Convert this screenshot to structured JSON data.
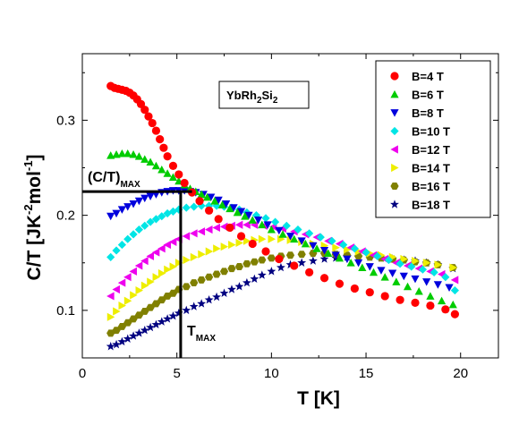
{
  "chart_data": {
    "type": "scatter",
    "xlabel": "T [K]",
    "ylabel_main": "C/T [JK",
    "ylabel_sup1": "-2",
    "ylabel_mid": "mol",
    "ylabel_sup2": "-1",
    "ylabel_end": "]",
    "xlim": [
      0,
      22
    ],
    "ylim": [
      0.05,
      0.37
    ],
    "xticks": [
      0,
      5,
      10,
      15,
      20
    ],
    "yticks": [
      0.1,
      0.2,
      0.3
    ],
    "xtick_labels": [
      "0",
      "5",
      "10",
      "15",
      "20"
    ],
    "ytick_labels": [
      "0.1",
      "0.2",
      "0.3"
    ],
    "legend_position": "top-right",
    "label_box": {
      "main": "YbRh",
      "sub1": "2",
      "mid": "Si",
      "sub2": "2"
    },
    "annotations": {
      "ct_max_main": "(C/T)",
      "ct_max_sub": "MAX",
      "t_max_main": "T",
      "t_max_sub": "MAX",
      "t_max_value": 5.2,
      "ct_max_value": 0.225
    },
    "series": [
      {
        "name": "B=4 T",
        "marker": "circle",
        "color": "#ff0000",
        "x": [
          1.5,
          1.7,
          1.9,
          2.1,
          2.3,
          2.5,
          2.7,
          2.9,
          3.1,
          3.3,
          3.5,
          3.7,
          3.9,
          4.1,
          4.3,
          4.5,
          4.8,
          5.1,
          5.4,
          5.8,
          6.2,
          6.7,
          7.2,
          7.8,
          8.4,
          9.0,
          9.7,
          10.4,
          11.2,
          12.0,
          12.8,
          13.6,
          14.4,
          15.2,
          16.0,
          16.8,
          17.6,
          18.4,
          19.2,
          19.7
        ],
        "y": [
          0.336,
          0.334,
          0.333,
          0.332,
          0.331,
          0.329,
          0.326,
          0.322,
          0.317,
          0.311,
          0.304,
          0.297,
          0.289,
          0.28,
          0.271,
          0.262,
          0.252,
          0.243,
          0.234,
          0.224,
          0.215,
          0.205,
          0.196,
          0.187,
          0.178,
          0.17,
          0.162,
          0.154,
          0.147,
          0.14,
          0.134,
          0.128,
          0.123,
          0.119,
          0.115,
          0.111,
          0.108,
          0.105,
          0.101,
          0.096
        ]
      },
      {
        "name": "B=6 T",
        "marker": "triangle-up",
        "color": "#00cc00",
        "x": [
          1.5,
          1.8,
          2.1,
          2.4,
          2.7,
          3.0,
          3.3,
          3.6,
          3.9,
          4.2,
          4.5,
          4.8,
          5.1,
          5.4,
          5.7,
          6.0,
          6.3,
          6.6,
          7.0,
          7.4,
          7.8,
          8.2,
          8.6,
          9.0,
          9.5,
          10.0,
          10.6,
          11.2,
          11.8,
          12.4,
          13.0,
          13.6,
          14.2,
          14.8,
          15.4,
          16.0,
          16.6,
          17.2,
          17.8,
          18.4,
          19.0,
          19.6
        ],
        "y": [
          0.263,
          0.264,
          0.265,
          0.265,
          0.264,
          0.262,
          0.259,
          0.256,
          0.252,
          0.248,
          0.244,
          0.24,
          0.236,
          0.232,
          0.228,
          0.225,
          0.222,
          0.219,
          0.215,
          0.211,
          0.207,
          0.203,
          0.199,
          0.195,
          0.19,
          0.185,
          0.18,
          0.175,
          0.17,
          0.165,
          0.16,
          0.155,
          0.15,
          0.145,
          0.14,
          0.135,
          0.13,
          0.125,
          0.12,
          0.115,
          0.11,
          0.106
        ]
      },
      {
        "name": "B=8 T",
        "marker": "triangle-down",
        "color": "#0000dd",
        "x": [
          1.5,
          1.8,
          2.1,
          2.4,
          2.7,
          3.0,
          3.3,
          3.6,
          3.9,
          4.2,
          4.5,
          4.8,
          5.1,
          5.4,
          5.7,
          6.0,
          6.4,
          6.8,
          7.2,
          7.6,
          8.0,
          8.4,
          8.8,
          9.3,
          9.8,
          10.4,
          11.0,
          11.6,
          12.2,
          12.8,
          13.4,
          14.0,
          14.6,
          15.2,
          15.8,
          16.4,
          17.0,
          17.6,
          18.2,
          18.8,
          19.4
        ],
        "y": [
          0.199,
          0.202,
          0.206,
          0.209,
          0.212,
          0.215,
          0.218,
          0.22,
          0.222,
          0.224,
          0.225,
          0.226,
          0.226,
          0.226,
          0.225,
          0.224,
          0.222,
          0.219,
          0.216,
          0.212,
          0.208,
          0.204,
          0.2,
          0.195,
          0.19,
          0.184,
          0.178,
          0.173,
          0.168,
          0.163,
          0.158,
          0.154,
          0.15,
          0.146,
          0.142,
          0.139,
          0.136,
          0.133,
          0.13,
          0.127,
          0.124
        ]
      },
      {
        "name": "B=10 T",
        "marker": "diamond",
        "color": "#00e5e5",
        "x": [
          1.5,
          1.8,
          2.1,
          2.4,
          2.7,
          3.0,
          3.3,
          3.6,
          3.9,
          4.2,
          4.5,
          4.8,
          5.1,
          5.5,
          5.9,
          6.3,
          6.7,
          7.1,
          7.5,
          7.9,
          8.3,
          8.7,
          9.2,
          9.7,
          10.2,
          10.8,
          11.4,
          12.0,
          12.6,
          13.2,
          13.8,
          14.4,
          15.0,
          15.6,
          16.2,
          16.8,
          17.4,
          18.0,
          18.6,
          19.2,
          19.7
        ],
        "y": [
          0.156,
          0.163,
          0.169,
          0.175,
          0.18,
          0.185,
          0.189,
          0.193,
          0.196,
          0.199,
          0.202,
          0.204,
          0.206,
          0.208,
          0.209,
          0.21,
          0.21,
          0.21,
          0.209,
          0.208,
          0.206,
          0.203,
          0.2,
          0.197,
          0.193,
          0.189,
          0.185,
          0.181,
          0.177,
          0.173,
          0.169,
          0.165,
          0.161,
          0.157,
          0.153,
          0.149,
          0.146,
          0.143,
          0.14,
          0.135,
          0.121
        ]
      },
      {
        "name": "B=12 T",
        "marker": "triangle-left",
        "color": "#ee00ee",
        "x": [
          1.5,
          1.8,
          2.1,
          2.4,
          2.7,
          3.0,
          3.3,
          3.6,
          3.9,
          4.2,
          4.5,
          4.8,
          5.1,
          5.5,
          5.9,
          6.3,
          6.7,
          7.1,
          7.5,
          7.9,
          8.3,
          8.7,
          9.1,
          9.6,
          10.1,
          10.6,
          11.2,
          11.8,
          12.4,
          13.0,
          13.6,
          14.2,
          14.8,
          15.4,
          16.0,
          16.6,
          17.2,
          17.8,
          18.4,
          19.0,
          19.7
        ],
        "y": [
          0.115,
          0.122,
          0.129,
          0.135,
          0.141,
          0.147,
          0.152,
          0.157,
          0.161,
          0.165,
          0.169,
          0.172,
          0.175,
          0.178,
          0.181,
          0.183,
          0.185,
          0.187,
          0.188,
          0.189,
          0.19,
          0.19,
          0.19,
          0.189,
          0.188,
          0.186,
          0.183,
          0.18,
          0.177,
          0.173,
          0.17,
          0.166,
          0.162,
          0.158,
          0.154,
          0.15,
          0.147,
          0.144,
          0.141,
          0.138,
          0.132
        ]
      },
      {
        "name": "B=14 T",
        "marker": "triangle-right",
        "color": "#eeee00",
        "x": [
          1.5,
          1.8,
          2.1,
          2.4,
          2.7,
          3.0,
          3.3,
          3.6,
          3.9,
          4.2,
          4.5,
          4.8,
          5.1,
          5.5,
          5.9,
          6.3,
          6.7,
          7.1,
          7.5,
          7.9,
          8.3,
          8.7,
          9.1,
          9.5,
          10.0,
          10.5,
          11.0,
          11.6,
          12.2,
          12.8,
          13.4,
          14.0,
          14.6,
          15.2,
          15.8,
          16.4,
          17.0,
          17.6,
          18.2,
          18.8,
          19.6
        ],
        "y": [
          0.093,
          0.099,
          0.105,
          0.11,
          0.116,
          0.121,
          0.126,
          0.13,
          0.135,
          0.139,
          0.143,
          0.146,
          0.15,
          0.153,
          0.156,
          0.159,
          0.162,
          0.165,
          0.167,
          0.169,
          0.171,
          0.173,
          0.174,
          0.175,
          0.175,
          0.175,
          0.174,
          0.172,
          0.17,
          0.168,
          0.166,
          0.164,
          0.162,
          0.16,
          0.158,
          0.156,
          0.154,
          0.152,
          0.15,
          0.148,
          0.145
        ]
      },
      {
        "name": "B=16 T",
        "marker": "hexagon",
        "color": "#808000",
        "x": [
          1.5,
          1.8,
          2.1,
          2.4,
          2.7,
          3.0,
          3.3,
          3.6,
          3.9,
          4.2,
          4.5,
          4.8,
          5.1,
          5.5,
          5.9,
          6.3,
          6.7,
          7.1,
          7.5,
          7.9,
          8.3,
          8.7,
          9.1,
          9.5,
          10.0,
          10.5,
          11.0,
          11.6,
          12.2,
          12.8,
          13.4,
          14.0,
          14.6,
          15.2,
          15.8,
          16.4,
          17.0,
          17.6,
          18.2,
          18.8,
          19.6
        ],
        "y": [
          0.076,
          0.079,
          0.083,
          0.087,
          0.091,
          0.095,
          0.099,
          0.103,
          0.107,
          0.111,
          0.115,
          0.118,
          0.122,
          0.125,
          0.129,
          0.132,
          0.135,
          0.138,
          0.141,
          0.144,
          0.146,
          0.149,
          0.151,
          0.153,
          0.155,
          0.157,
          0.158,
          0.159,
          0.16,
          0.16,
          0.159,
          0.158,
          0.157,
          0.156,
          0.155,
          0.154,
          0.153,
          0.151,
          0.15,
          0.148,
          0.145
        ]
      },
      {
        "name": "B=18 T",
        "marker": "star",
        "color": "#000080",
        "x": [
          1.5,
          1.8,
          2.1,
          2.4,
          2.7,
          3.0,
          3.3,
          3.6,
          3.9,
          4.2,
          4.5,
          4.8,
          5.1,
          5.5,
          5.9,
          6.3,
          6.7,
          7.1,
          7.5,
          7.9,
          8.3,
          8.7,
          9.1,
          9.5,
          10.0,
          10.5,
          11.0,
          11.6,
          12.2,
          12.8,
          13.4,
          14.0,
          14.6,
          15.2,
          15.8,
          16.4,
          17.0,
          17.6,
          18.2,
          18.8,
          19.6
        ],
        "y": [
          0.062,
          0.064,
          0.067,
          0.07,
          0.073,
          0.076,
          0.079,
          0.082,
          0.085,
          0.088,
          0.091,
          0.094,
          0.097,
          0.1,
          0.104,
          0.107,
          0.111,
          0.114,
          0.118,
          0.122,
          0.125,
          0.129,
          0.133,
          0.137,
          0.141,
          0.145,
          0.148,
          0.15,
          0.152,
          0.154,
          0.155,
          0.156,
          0.156,
          0.156,
          0.155,
          0.154,
          0.153,
          0.152,
          0.15,
          0.148,
          0.144
        ]
      }
    ]
  }
}
